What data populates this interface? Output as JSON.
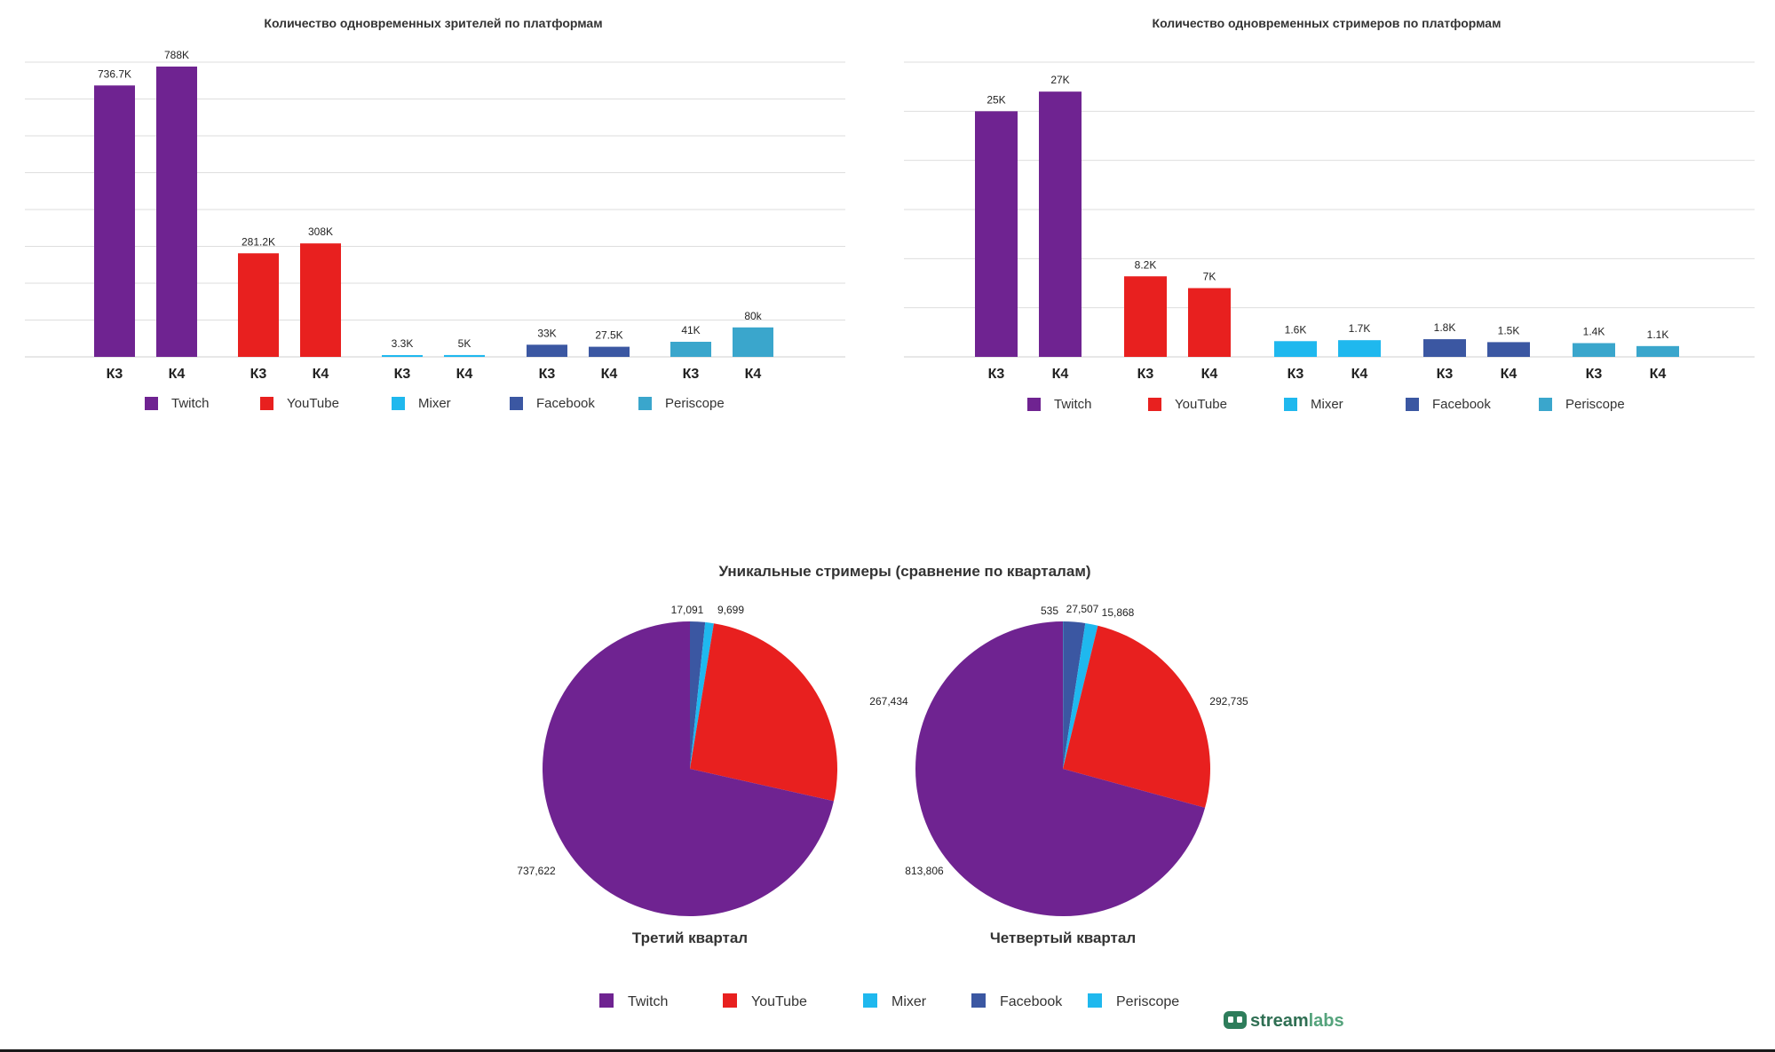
{
  "colors": {
    "Twitch": "#6f2391",
    "YouTube": "#e8201f",
    "Mixer": "#1fb8ee",
    "Facebook": "#3b57a2",
    "Periscope": "#3aa6cc"
  },
  "chart_data": [
    {
      "type": "bar",
      "title": "Количество одновременных зрителей по платформам",
      "groups": [
        "Twitch",
        "YouTube",
        "Mixer",
        "Facebook",
        "Periscope"
      ],
      "categories": [
        "К3",
        "К4"
      ],
      "series": [
        {
          "name": "Twitch",
          "values": [
            736.7,
            788
          ],
          "labels": [
            "736.7K",
            "788K"
          ]
        },
        {
          "name": "YouTube",
          "values": [
            281.2,
            308
          ],
          "labels": [
            "281.2K",
            "308K"
          ]
        },
        {
          "name": "Mixer",
          "values": [
            3.3,
            5
          ],
          "labels": [
            "3.3K",
            "5K"
          ]
        },
        {
          "name": "Facebook",
          "values": [
            33,
            27.5
          ],
          "labels": [
            "33K",
            "27.5K"
          ]
        },
        {
          "name": "Periscope",
          "values": [
            41,
            80
          ],
          "labels": [
            "41K",
            "80k"
          ]
        }
      ],
      "ylim": [
        0,
        800
      ],
      "grid": true,
      "legend": "bottom"
    },
    {
      "type": "bar",
      "title": "Количество одновременных стримеров по платформам",
      "groups": [
        "Twitch",
        "YouTube",
        "Mixer",
        "Facebook",
        "Periscope"
      ],
      "categories": [
        "К3",
        "К4"
      ],
      "series": [
        {
          "name": "Twitch",
          "values": [
            25,
            27
          ],
          "labels": [
            "25K",
            "27K"
          ]
        },
        {
          "name": "YouTube",
          "values": [
            8.2,
            7
          ],
          "labels": [
            "8.2K",
            "7K"
          ]
        },
        {
          "name": "Mixer",
          "values": [
            1.6,
            1.7
          ],
          "labels": [
            "1.6K",
            "1.7K"
          ]
        },
        {
          "name": "Facebook",
          "values": [
            1.8,
            1.5
          ],
          "labels": [
            "1.8K",
            "1.5K"
          ]
        },
        {
          "name": "Periscope",
          "values": [
            1.4,
            1.1
          ],
          "labels": [
            "1.4K",
            "1.1K"
          ]
        }
      ],
      "ylim": [
        0,
        30
      ],
      "grid": true,
      "legend": "bottom"
    },
    {
      "type": "pie",
      "title": "Уникальные стримеры (сравнение по кварталам)",
      "pies": [
        {
          "name": "Третий квартал",
          "slices": [
            {
              "name": "Facebook",
              "value": 17091,
              "label": "17,091"
            },
            {
              "name": "Mixer",
              "value": 9699,
              "label": "9,699"
            },
            {
              "name": "YouTube",
              "value": 267434,
              "label": "267,434"
            },
            {
              "name": "Twitch",
              "value": 737622,
              "label": "737,622"
            }
          ]
        },
        {
          "name": "Четвертый квартал",
          "slices": [
            {
              "name": "Periscope",
              "value": 535,
              "label": "535"
            },
            {
              "name": "Facebook",
              "value": 27507,
              "label": "27,507"
            },
            {
              "name": "Mixer",
              "value": 15868,
              "label": "15,868"
            },
            {
              "name": "YouTube",
              "value": 292735,
              "label": "292,735"
            },
            {
              "name": "Twitch",
              "value": 813806,
              "label": "813,806"
            }
          ]
        }
      ],
      "legend": [
        "Twitch",
        "YouTube",
        "Mixer",
        "Facebook",
        "Periscope"
      ],
      "legend_colors": [
        "#6f2391",
        "#e8201f",
        "#1fb8ee",
        "#3b57a2",
        "#1fb8ee"
      ]
    }
  ],
  "logo": {
    "part1": "stream",
    "part2": "labs"
  }
}
